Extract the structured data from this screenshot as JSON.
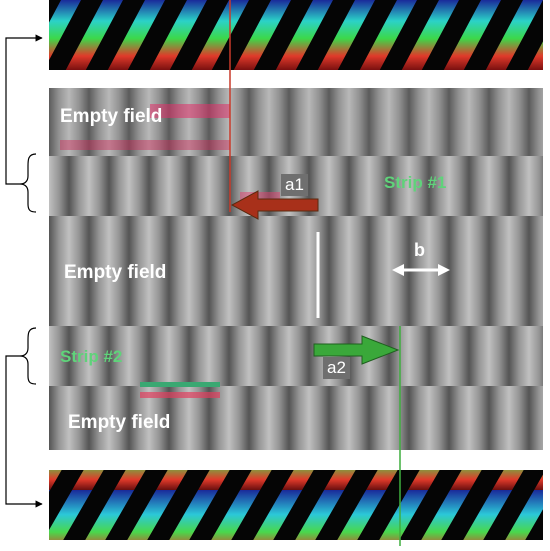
{
  "figure": {
    "field_labels": [
      "Empty field",
      "Empty field",
      "Empty field"
    ],
    "strip_labels": [
      "Strip #1",
      "Strip #2"
    ],
    "arrow_labels": [
      "a1",
      "a2",
      "b"
    ],
    "colors": {
      "background_gray": "#8a8a8a",
      "stripe_light": "#c8c8c8",
      "stripe_dark": "#4a4a4a",
      "arrow_red": "#b0301a",
      "arrow_green": "#3aa83a",
      "line_red": "#c83a2a",
      "line_green": "#3fae3f",
      "label_green": "#5fd37a"
    },
    "icons": [
      "bracket-arrow-icon",
      "bracket-arrow-icon",
      "double-arrow-icon",
      "arrow-left-icon",
      "arrow-right-icon"
    ]
  }
}
